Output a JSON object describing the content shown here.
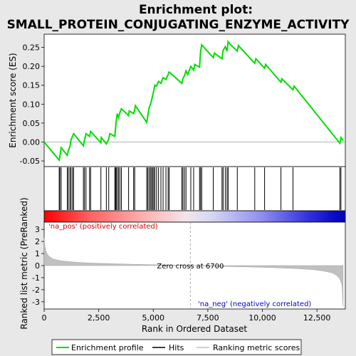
{
  "chart_data": [
    {
      "type": "line",
      "title": "Enrichment plot:\nSMALL_PROTEIN_CONJUGATING_ENZYME_ACTIVITY",
      "title_lines": [
        "Enrichment plot:",
        "SMALL_PROTEIN_CONJUGATING_ENZYME_ACTIVITY"
      ],
      "ylabel": "Enrichment score (ES)",
      "xlim": [
        0,
        13800
      ],
      "ylim": [
        -0.065,
        0.285
      ],
      "yticks": [
        -0.05,
        0.0,
        0.05,
        0.1,
        0.15,
        0.2,
        0.25
      ],
      "ytick_labels": [
        "-0.05",
        "0.00",
        "0.05",
        "0.10",
        "0.15",
        "0.20",
        "0.25"
      ],
      "grid": false,
      "series": [
        {
          "name": "Enrichment profile",
          "color": "#00dd00",
          "x": [
            0,
            690,
            720,
            780,
            1060,
            1110,
            1180,
            1230,
            1300,
            1350,
            1800,
            1850,
            1920,
            2080,
            2130,
            2600,
            2620,
            2850,
            2960,
            3010,
            3240,
            3270,
            3300,
            3350,
            3410,
            3470,
            3540,
            3870,
            3900,
            4100,
            4150,
            4180,
            4700,
            4750,
            4810,
            4870,
            4920,
            4970,
            5020,
            5070,
            5150,
            5240,
            5350,
            5450,
            5580,
            5680,
            5730,
            6310,
            6360,
            6430,
            6500,
            6580,
            6720,
            6850,
            6900,
            7120,
            7170,
            7220,
            7750,
            7800,
            8150,
            8200,
            8300,
            8380,
            8430,
            8500,
            8850,
            8900,
            9650,
            9700,
            10100,
            10150,
            10850,
            10900,
            11400,
            11450,
            13550,
            13600,
            13700
          ],
          "y": [
            0.0,
            -0.048,
            -0.038,
            -0.015,
            -0.035,
            -0.022,
            -0.012,
            0.005,
            0.015,
            0.022,
            -0.01,
            0.005,
            0.022,
            0.015,
            0.028,
            -0.002,
            0.012,
            -0.005,
            0.008,
            0.022,
            0.015,
            0.035,
            0.055,
            0.075,
            0.065,
            0.078,
            0.088,
            0.07,
            0.082,
            0.075,
            0.085,
            0.096,
            0.052,
            0.07,
            0.09,
            0.1,
            0.11,
            0.122,
            0.135,
            0.15,
            0.148,
            0.16,
            0.155,
            0.17,
            0.165,
            0.178,
            0.185,
            0.155,
            0.168,
            0.175,
            0.188,
            0.178,
            0.2,
            0.19,
            0.205,
            0.198,
            0.24,
            0.257,
            0.223,
            0.235,
            0.22,
            0.242,
            0.252,
            0.24,
            0.265,
            0.26,
            0.24,
            0.255,
            0.208,
            0.22,
            0.195,
            0.205,
            0.158,
            0.167,
            0.138,
            0.148,
            -0.003,
            0.012,
            0.003
          ]
        }
      ]
    },
    {
      "type": "scatter",
      "legend_name": "Hits",
      "xlim": [
        0,
        13800
      ],
      "hits": [
        690,
        720,
        780,
        1060,
        1110,
        1180,
        1230,
        1300,
        1350,
        1800,
        1850,
        1920,
        2080,
        2130,
        2600,
        2850,
        2960,
        3240,
        3270,
        3300,
        3350,
        3410,
        3470,
        3540,
        3870,
        4100,
        4150,
        4700,
        4750,
        4810,
        4870,
        4920,
        4970,
        5020,
        5070,
        5150,
        5240,
        5350,
        5450,
        5580,
        5680,
        5730,
        6310,
        6360,
        6430,
        6500,
        6720,
        6850,
        7120,
        7170,
        7220,
        7750,
        8150,
        8200,
        8300,
        8380,
        8430,
        8850,
        9650,
        10100,
        10850,
        11400,
        13550,
        13600
      ]
    },
    {
      "type": "area",
      "ylabel": "Ranked list metric (PreRanked)",
      "xlabel": "Rank in Ordered Dataset",
      "legend_name": "Ranking metric scores",
      "xlim": [
        0,
        13800
      ],
      "ylim": [
        -3.6,
        3.6
      ],
      "yticks": [
        -3,
        -2,
        -1,
        0,
        1,
        2,
        3
      ],
      "ytick_labels": [
        "-3",
        "-2",
        "-1",
        "0",
        "1",
        "2",
        "3"
      ],
      "xticks": [
        0,
        2500,
        5000,
        7500,
        10000,
        12500
      ],
      "xtick_labels": [
        "0",
        "2,500",
        "5,000",
        "7,500",
        "10,000",
        "12,500"
      ],
      "x": [
        0,
        30,
        100,
        200,
        400,
        700,
        1000,
        1500,
        2000,
        3000,
        4000,
        5000,
        6000,
        6700,
        7500,
        8500,
        9500,
        10500,
        11500,
        12300,
        12800,
        13200,
        13400,
        13550,
        13650,
        13700
      ],
      "y": [
        2.3,
        1.6,
        1.1,
        0.8,
        0.55,
        0.42,
        0.35,
        0.27,
        0.22,
        0.16,
        0.11,
        0.07,
        0.03,
        0.0,
        -0.04,
        -0.08,
        -0.12,
        -0.17,
        -0.24,
        -0.33,
        -0.45,
        -0.6,
        -0.8,
        -1.1,
        -1.6,
        -3.4
      ],
      "zero_cross": 6700,
      "zero_cross_label": "Zero cross at 6700",
      "pos_label": "'na_pos' (positively correlated)",
      "neg_label": "'na_neg' (negatively correlated)"
    }
  ],
  "legend": [
    {
      "label": "Enrichment profile",
      "color": "#00dd00"
    },
    {
      "label": "Hits",
      "color": "#000000"
    },
    {
      "label": "Ranking metric scores",
      "color": "#c0c0c0"
    }
  ],
  "colors": {
    "es_line": "#00dd00",
    "hit": "#000000",
    "metric_fill": "#c0c0c0",
    "pos_text": "#dd0000",
    "neg_text": "#0000cc",
    "zero_line": "#aaaaaa"
  }
}
